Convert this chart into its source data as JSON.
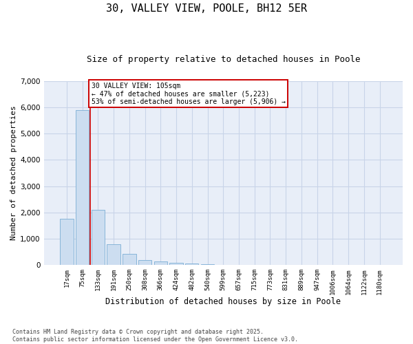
{
  "title_line1": "30, VALLEY VIEW, POOLE, BH12 5ER",
  "title_line2": "Size of property relative to detached houses in Poole",
  "xlabel": "Distribution of detached houses by size in Poole",
  "ylabel": "Number of detached properties",
  "footnote": "Contains HM Land Registry data © Crown copyright and database right 2025.\nContains public sector information licensed under the Open Government Licence v3.0.",
  "bar_color": "#ccddf0",
  "bar_edge_color": "#7aadd4",
  "bin_labels": [
    "17sqm",
    "75sqm",
    "133sqm",
    "191sqm",
    "250sqm",
    "308sqm",
    "366sqm",
    "424sqm",
    "482sqm",
    "540sqm",
    "599sqm",
    "657sqm",
    "715sqm",
    "773sqm",
    "831sqm",
    "889sqm",
    "947sqm",
    "1006sqm",
    "1064sqm",
    "1122sqm",
    "1180sqm"
  ],
  "bar_values": [
    1750,
    5900,
    2100,
    800,
    420,
    200,
    130,
    85,
    50,
    25,
    15,
    8,
    4,
    2,
    1,
    1,
    0,
    0,
    0,
    0,
    0
  ],
  "ylim": [
    0,
    7000
  ],
  "yticks": [
    0,
    1000,
    2000,
    3000,
    4000,
    5000,
    6000,
    7000
  ],
  "property_label": "30 VALLEY VIEW: 105sqm",
  "annotation_line1": "← 47% of detached houses are smaller (5,223)",
  "annotation_line2": "53% of semi-detached houses are larger (5,906) →",
  "annotation_box_color": "#ffffff",
  "annotation_box_edge_color": "#cc0000",
  "vline_color": "#cc0000",
  "grid_color": "#c8d4e8",
  "bg_color": "#e8eef8"
}
